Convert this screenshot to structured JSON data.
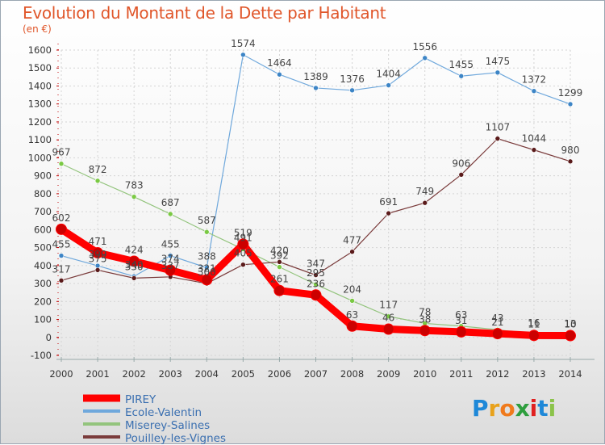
{
  "title": "Evolution du Montant de la Dette par Habitant",
  "unit_label": "(en €)",
  "logo": {
    "text": "Proxiti",
    "letters": [
      "P",
      "r",
      "o",
      "x",
      "i",
      "t",
      "i"
    ],
    "colors": [
      "#1e88d8",
      "#e8a21c",
      "#f07a1c",
      "#2e9e3e",
      "#e02020",
      "#1e88d8",
      "#8bc34a"
    ]
  },
  "chart_data": {
    "type": "line",
    "x": [
      "2000",
      "2001",
      "2002",
      "2003",
      "2004",
      "2005",
      "2006",
      "2007",
      "2008",
      "2009",
      "2010",
      "2011",
      "2012",
      "2013",
      "2014"
    ],
    "ylim": [
      -100,
      1600
    ],
    "yticks": [
      "-100",
      "0",
      "100",
      "200",
      "300",
      "400",
      "500",
      "600",
      "700",
      "800",
      "900",
      "1000",
      "1100",
      "1200",
      "1300",
      "1400",
      "1500",
      "1600"
    ],
    "grid": true,
    "legend_position": "bottom-left",
    "series": [
      {
        "name": "PIREY",
        "color": "#ff0000",
        "point_color": "#cc0000",
        "width": 9,
        "values": [
          602,
          471,
          424,
          374,
          321,
          519,
          261,
          236,
          63,
          46,
          38,
          31,
          21,
          11,
          10
        ],
        "labels": [
          "602",
          "471",
          "424",
          "374",
          "321",
          "519",
          "261",
          "236",
          "63",
          "46",
          "38",
          "31",
          "21",
          "11",
          "10"
        ]
      },
      {
        "name": "Ecole-Valentin",
        "color": "#6fa8dc",
        "point_color": "#3d85c6",
        "width": 1.2,
        "values": [
          455,
          399,
          340,
          455,
          388,
          1574,
          1464,
          1389,
          1376,
          1404,
          1556,
          1455,
          1475,
          1372,
          1299
        ],
        "labels": [
          "455",
          "399",
          "340",
          "455",
          "388",
          "1574",
          "1464",
          "1389",
          "1376",
          "1404",
          "1556",
          "1455",
          "1475",
          "1372",
          "1299"
        ]
      },
      {
        "name": "Miserey-Salines",
        "color": "#93c47d",
        "point_color": "#7ac943",
        "width": 1.2,
        "values": [
          967,
          872,
          783,
          687,
          587,
          491,
          392,
          295,
          204,
          117,
          78,
          63,
          43,
          16,
          13
        ],
        "labels": [
          "967",
          "872",
          "783",
          "687",
          "587",
          "491",
          "392",
          "295",
          "204",
          "117",
          "78",
          "63",
          "43",
          "16",
          "13"
        ]
      },
      {
        "name": "Pouilley-les-Vignes",
        "color": "#7a3b3b",
        "point_color": "#5a1a1a",
        "width": 1.2,
        "values": [
          317,
          375,
          330,
          337,
          300,
          405,
          420,
          347,
          477,
          691,
          749,
          906,
          1107,
          1044,
          980
        ],
        "labels": [
          "317",
          "375",
          "330",
          "337",
          "300",
          "405",
          "420",
          "347",
          "477",
          "691",
          "749",
          "906",
          "1107",
          "1044",
          "980"
        ]
      }
    ]
  }
}
